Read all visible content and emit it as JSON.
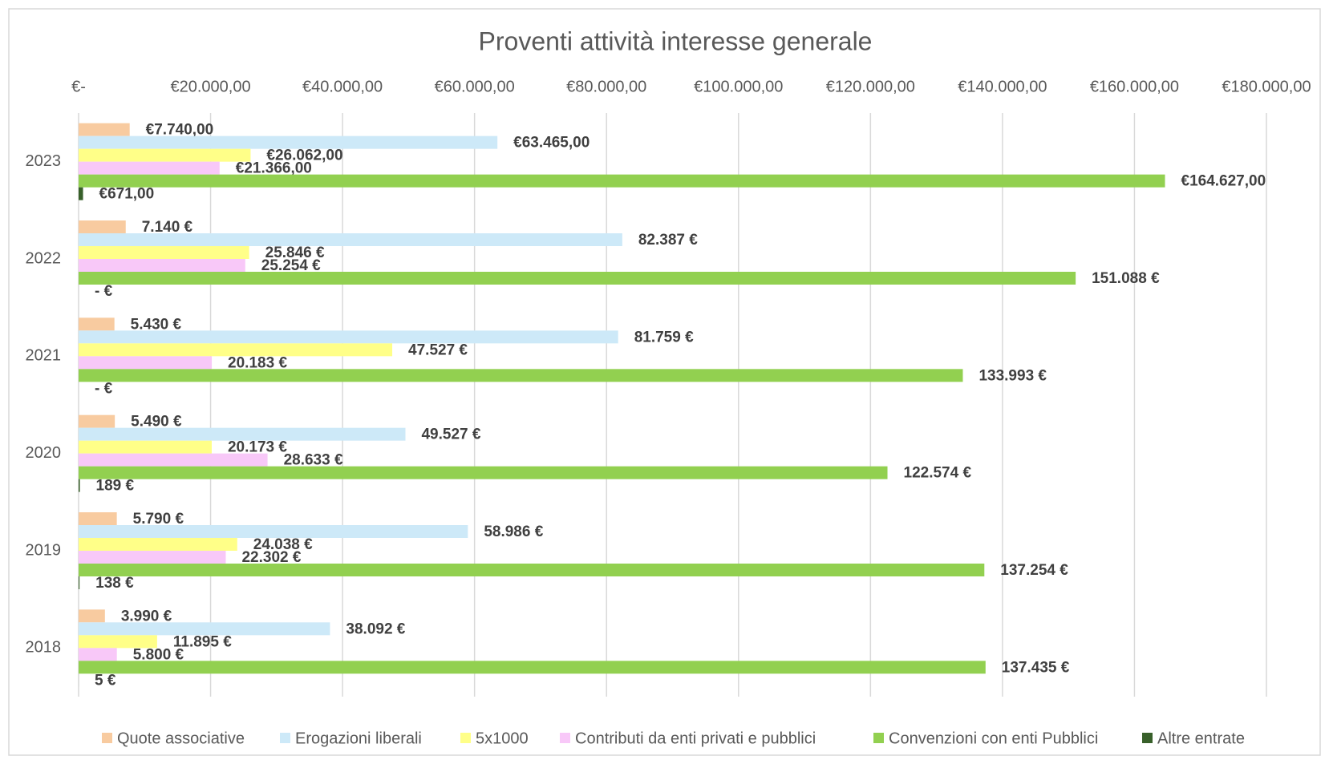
{
  "chart_data": {
    "type": "bar",
    "orientation": "horizontal",
    "title": "Proventi attività interesse generale",
    "categories": [
      "2023",
      "2022",
      "2021",
      "2020",
      "2019",
      "2018"
    ],
    "xlim": [
      0,
      180000
    ],
    "xticks": [
      {
        "value": 0,
        "label": "€-"
      },
      {
        "value": 20000,
        "label": "€20.000,00"
      },
      {
        "value": 40000,
        "label": "€40.000,00"
      },
      {
        "value": 60000,
        "label": "€60.000,00"
      },
      {
        "value": 80000,
        "label": "€80.000,00"
      },
      {
        "value": 100000,
        "label": "€100.000,00"
      },
      {
        "value": 120000,
        "label": "€120.000,00"
      },
      {
        "value": 140000,
        "label": "€140.000,00"
      },
      {
        "value": 160000,
        "label": "€160.000,00"
      },
      {
        "value": 180000,
        "label": "€180.000,00"
      }
    ],
    "grid": true,
    "legend": "bottom",
    "series": [
      {
        "name": "Quote associative",
        "color": "#f8cba0",
        "values": [
          7740,
          7140,
          5430,
          5490,
          5790,
          3990
        ],
        "value_labels": [
          "€7.740,00",
          "7.140 €",
          "5.430 €",
          "5.490 €",
          "5.790 €",
          "3.990 €"
        ]
      },
      {
        "name": "Erogazioni liberali",
        "color": "#cde9f8",
        "values": [
          63465,
          82387,
          81759,
          49527,
          58986,
          38092
        ],
        "value_labels": [
          "€63.465,00",
          "82.387 €",
          "81.759 €",
          "49.527 €",
          "58.986 €",
          "38.092 €"
        ]
      },
      {
        "name": "5x1000",
        "color": "#ffff88",
        "values": [
          26062,
          25846,
          47527,
          20173,
          24038,
          11895
        ],
        "value_labels": [
          "€26.062,00",
          "25.846 €",
          "47.527 €",
          "20.173 €",
          "24.038 €",
          "11.895 €"
        ]
      },
      {
        "name": "Contributi da enti privati e pubblici",
        "color": "#f8c8f8",
        "values": [
          21366,
          25254,
          20183,
          28633,
          22302,
          5800
        ],
        "value_labels": [
          "€21.366,00",
          "25.254 €",
          "20.183 €",
          "28.633 €",
          "22.302 €",
          "5.800 €"
        ]
      },
      {
        "name": "Convenzioni con enti Pubblici",
        "color": "#92d050",
        "values": [
          164627,
          151088,
          133993,
          122574,
          137254,
          137435
        ],
        "value_labels": [
          "€164.627,00",
          "151.088 €",
          "133.993 €",
          "122.574 €",
          "137.254 €",
          "137.435 €"
        ]
      },
      {
        "name": "Altre entrate",
        "color": "#38602a",
        "values": [
          671,
          0,
          0,
          189,
          138,
          5
        ],
        "value_labels": [
          "€671,00",
          "-   €",
          "-   €",
          "189 €",
          "138 €",
          "5 €"
        ]
      }
    ]
  }
}
